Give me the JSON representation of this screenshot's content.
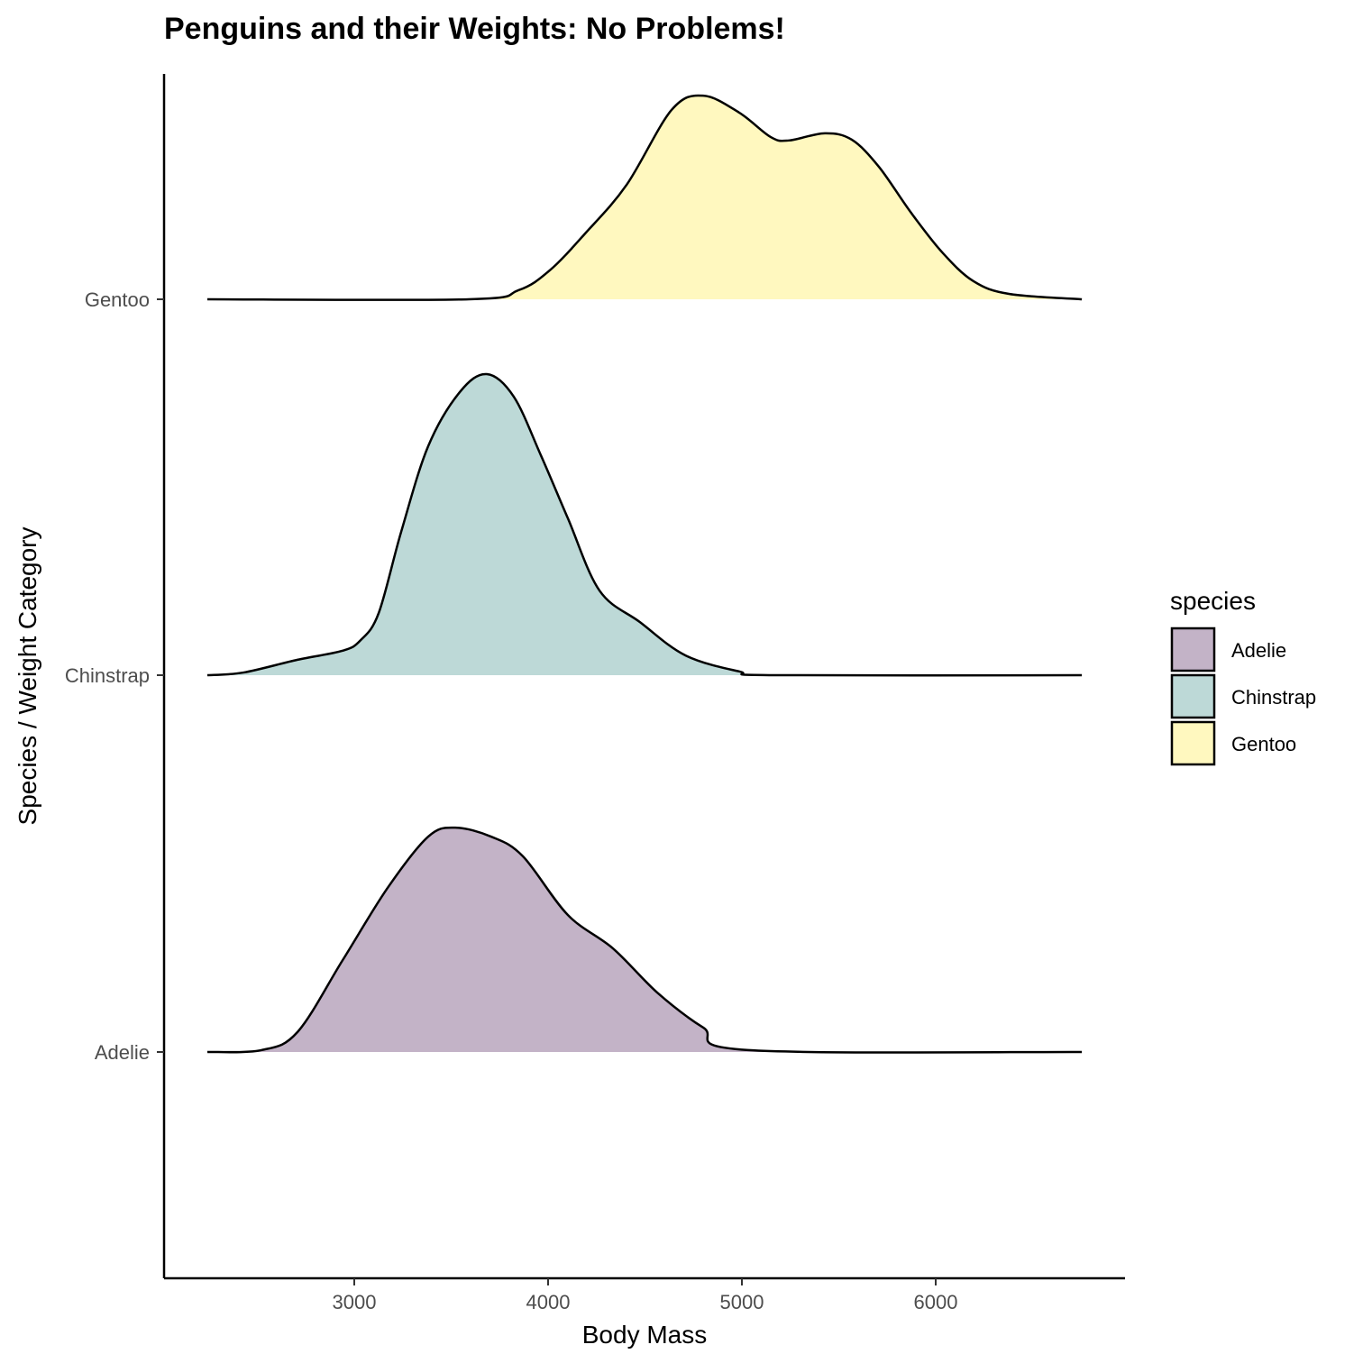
{
  "chart_data": {
    "type": "ridgeline",
    "title": "Penguins and their Weights: No Problems!",
    "xlabel": "Body Mass",
    "ylabel": "Species / Weight Category",
    "xlim": [
      2000,
      6950
    ],
    "x_ticks": [
      3000,
      4000,
      5000,
      6000
    ],
    "x_tick_labels": [
      "3000",
      "4000",
      "5000",
      "6000"
    ],
    "categories": [
      "Adelie",
      "Chinstrap",
      "Gentoo"
    ],
    "grid": false,
    "legend": {
      "title": "species",
      "placement": "right",
      "entries": [
        "Adelie",
        "Chinstrap",
        "Gentoo"
      ]
    },
    "series": [
      {
        "name": "Adelie",
        "color": "#C3B3C7",
        "x": [
          2242,
          2521,
          2707,
          2940,
          3172,
          3381,
          3521,
          3707,
          3870,
          4102,
          4335,
          4567,
          4800,
          5033,
          6754
        ],
        "density_scaled": [
          0,
          0.005,
          0.053,
          0.244,
          0.436,
          0.572,
          0.596,
          0.572,
          0.52,
          0.364,
          0.275,
          0.156,
          0.065,
          0.005,
          0
        ]
      },
      {
        "name": "Chinstrap",
        "color": "#BDD9D7",
        "x": [
          2242,
          2428,
          2707,
          2940,
          3033,
          3126,
          3242,
          3381,
          3544,
          3684,
          3823,
          3963,
          4102,
          4265,
          4474,
          4707,
          4986,
          5172,
          6754
        ],
        "density_scaled": [
          0,
          0.007,
          0.041,
          0.065,
          0.093,
          0.165,
          0.381,
          0.608,
          0.752,
          0.8,
          0.74,
          0.584,
          0.417,
          0.225,
          0.141,
          0.053,
          0.01,
          0,
          0
        ]
      },
      {
        "name": "Gentoo",
        "color": "#FFF8BF",
        "x": [
          2242,
          3591,
          3847,
          4009,
          4195,
          4405,
          4637,
          4800,
          4986,
          5149,
          5242,
          5428,
          5567,
          5707,
          5870,
          6033,
          6195,
          6381,
          6754
        ],
        "density_scaled": [
          0,
          0,
          0.024,
          0.077,
          0.177,
          0.304,
          0.503,
          0.541,
          0.496,
          0.431,
          0.422,
          0.441,
          0.424,
          0.352,
          0.232,
          0.125,
          0.048,
          0.014,
          0
        ]
      }
    ]
  }
}
